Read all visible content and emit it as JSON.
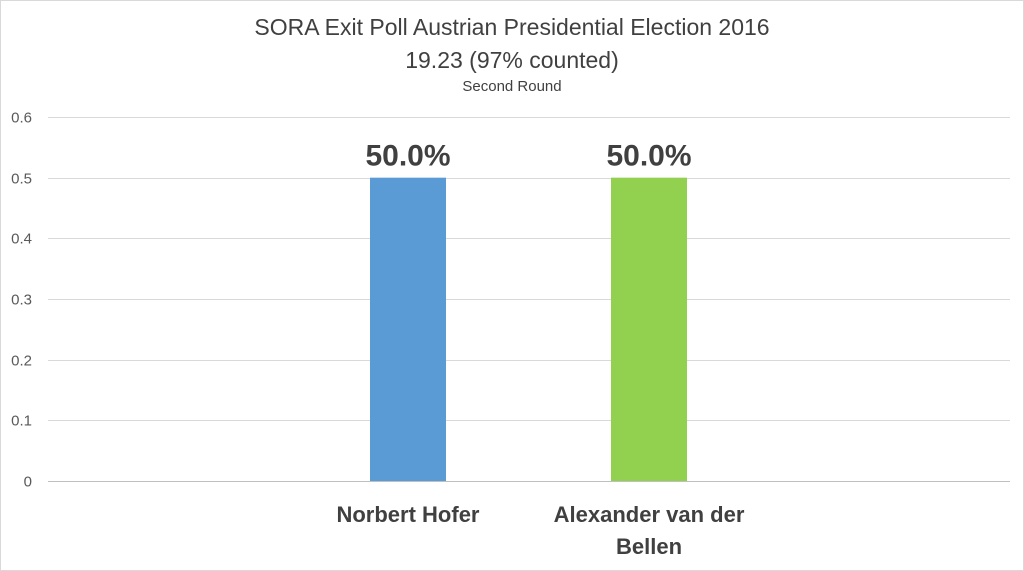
{
  "chart_data": {
    "type": "bar",
    "title": "SORA Exit Poll Austrian Presidential Election 2016",
    "subtitle": "19.23 (97% counted)",
    "subsubtitle": "Second Round",
    "categories": [
      "Norbert Hofer",
      "Alexander van der Bellen"
    ],
    "values": [
      0.5,
      0.5
    ],
    "data_labels": [
      "50.0%",
      "50.0%"
    ],
    "colors": [
      "#5b9bd5",
      "#92d050"
    ],
    "ylim": [
      0,
      0.6
    ],
    "yticks": [
      0,
      0.1,
      0.2,
      0.3,
      0.4,
      0.5,
      0.6
    ],
    "ytick_labels": [
      "0",
      "0.1",
      "0.2",
      "0.3",
      "0.4",
      "0.5",
      "0.6"
    ],
    "grid": true,
    "legend": "none"
  }
}
